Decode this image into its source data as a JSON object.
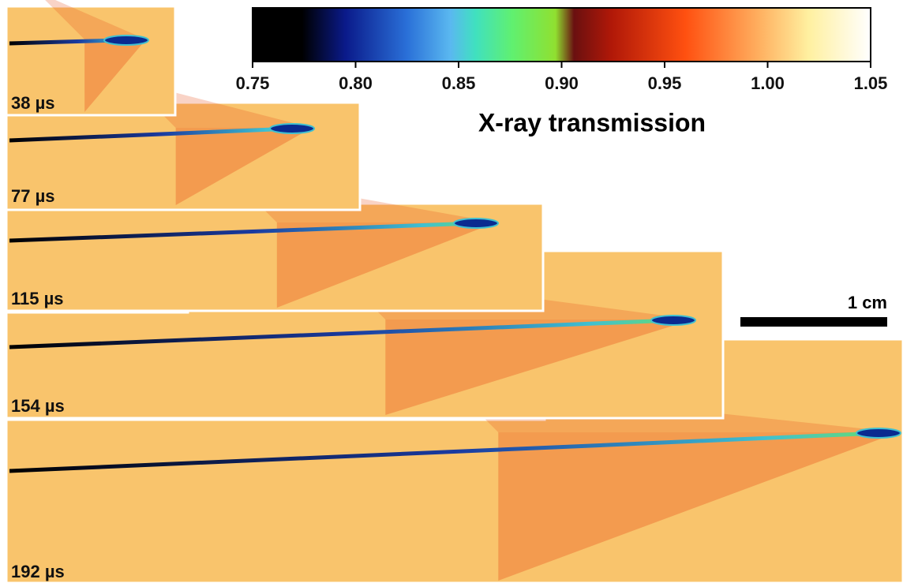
{
  "colorbar": {
    "label": "X-ray transmission",
    "range": [
      0.75,
      1.05
    ],
    "ticks": [
      {
        "value": 0.75,
        "label": "0.75"
      },
      {
        "value": 0.8,
        "label": "0.80"
      },
      {
        "value": 0.85,
        "label": "0.85"
      },
      {
        "value": 0.9,
        "label": "0.90"
      },
      {
        "value": 0.95,
        "label": "0.95"
      },
      {
        "value": 1.0,
        "label": "1.00"
      },
      {
        "value": 1.05,
        "label": "1.05"
      }
    ]
  },
  "frames": [
    {
      "label": "38 µs"
    },
    {
      "label": "77 µs"
    },
    {
      "label": "115 µs"
    },
    {
      "label": "154 µs"
    },
    {
      "label": "192 µs"
    }
  ],
  "scale_bar": {
    "label": "1 cm"
  }
}
